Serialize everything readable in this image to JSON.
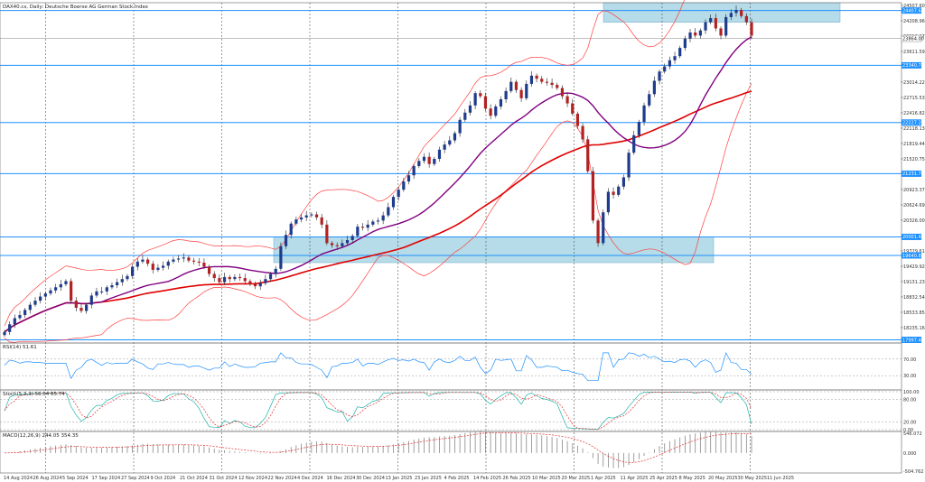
{
  "chart_data": {
    "type": "candlestick",
    "title": "DAX40.cs, Daily: Deutsche Boerse AG German Stock Index",
    "x_ticks": [
      "14 Aug 2024",
      "26 Aug 2024",
      "5 Sep 2024",
      "17 Sep 2024",
      "27 Sep 2024",
      "9 Oct 2024",
      "21 Oct 2024",
      "31 Oct 2024",
      "12 Nov 2024",
      "22 Nov 2024",
      "4 Dec 2024",
      "16 Dec 2024",
      "30 Dec 2024",
      "13 Jan 2025",
      "23 Jan 2025",
      "4 Feb 2025",
      "14 Feb 2025",
      "26 Feb 2025",
      "10 Mar 2025",
      "20 Mar 2025",
      "1 Apr 2025",
      "11 Apr 2025",
      "25 Apr 2025",
      "8 May 2025",
      "20 May 2025",
      "30 May 2025",
      "11 Jun 2025"
    ],
    "y_ticks": [
      "24507.60",
      "24208.96",
      "23910.27",
      "23611.59",
      "23014.22",
      "22715.53",
      "22416.82",
      "22118.13",
      "21819.44",
      "21520.75",
      "20923.37",
      "20624.69",
      "20326.00",
      "19729.61",
      "19429.92",
      "19131.23",
      "18832.54",
      "18533.85",
      "18235.16"
    ],
    "ylim": [
      17936,
      24560
    ],
    "price_tags": [
      {
        "label": "24407.63",
        "y": 24407.63
      },
      {
        "label": "23864.00",
        "y": 23864.0
      },
      {
        "label": "23340.70",
        "y": 23340.7
      },
      {
        "label": "22227.24",
        "y": 22227.24
      },
      {
        "label": "21231.71",
        "y": 21231.71
      },
      {
        "label": "20001.48",
        "y": 20001.48
      },
      {
        "label": "19640.87",
        "y": 19640.87
      },
      {
        "label": "17997.46",
        "y": 17997.46
      }
    ],
    "levels": [
      24407.63,
      23340.7,
      22227.24,
      21231.71,
      20001.48,
      19640.87,
      17997.46
    ],
    "current_price": 23864.0,
    "zones": [
      {
        "x_from": "1 Apr 2025",
        "x_to": "11 Jun 2025",
        "y_from": 24180,
        "y_to": 24560
      },
      {
        "x_from": "22 Nov 2024",
        "x_to": "30 May 2025",
        "y_from": 19500,
        "y_to": 20001.48
      }
    ],
    "series": [
      {
        "kind": "close",
        "values": [
          18150,
          18300,
          18420,
          18480,
          18580,
          18680,
          18760,
          18840,
          18900,
          18960,
          19020,
          19080,
          19140,
          18760,
          18620,
          18560,
          18680,
          18860,
          18940,
          18940,
          19020,
          19060,
          19120,
          19180,
          19240,
          19420,
          19520,
          19560,
          19480,
          19360,
          19400,
          19440,
          19520,
          19560,
          19580,
          19600,
          19540,
          19520,
          19500,
          19420,
          19280,
          19200,
          19120,
          19220,
          19180,
          19220,
          19200,
          19140,
          19080,
          19040,
          19100,
          19180,
          19280,
          19380,
          19820,
          20040,
          20260,
          20340,
          20380,
          20420,
          20440,
          20380,
          20240,
          19880,
          19840,
          19820,
          19880,
          19940,
          20020,
          20200,
          20180,
          20240,
          20300,
          20320,
          20420,
          20580,
          20780,
          20920,
          21080,
          21200,
          21380,
          21480,
          21560,
          21420,
          21520,
          21700,
          21800,
          21880,
          22020,
          22280,
          22420,
          22560,
          22800,
          22740,
          22500,
          22360,
          22540,
          22680,
          22840,
          23020,
          22860,
          22700,
          22980,
          23140,
          23080,
          23020,
          23000,
          22960,
          22900,
          22740,
          22600,
          22400,
          22160,
          21900,
          21280,
          20320,
          19880,
          20480,
          20880,
          20820,
          20980,
          21160,
          21640,
          21980,
          22240,
          22560,
          22780,
          23040,
          23220,
          23320,
          23440,
          23520,
          23680,
          23860,
          23980,
          23920,
          24020,
          24180,
          24260,
          24060,
          23920,
          24280,
          24360,
          24420,
          24300,
          24180,
          23920
        ]
      },
      {
        "kind": "sma_fast",
        "color": "#800080"
      },
      {
        "kind": "sma_slow",
        "color": "#e00000"
      },
      {
        "kind": "bollinger",
        "color": "#ff4040"
      }
    ],
    "indicators": [
      {
        "name": "RSI",
        "label": "RSI(14) 51.61",
        "levels": [
          "70.00",
          "30.00"
        ]
      },
      {
        "name": "Stoch",
        "label": "Stoch(5,3,3) 56.04 65.74",
        "levels": [
          "100.00",
          "80.00",
          "20.00",
          "0.00"
        ]
      },
      {
        "name": "MACD",
        "label": "MACD(12,26,9) 244.05 354.35",
        "levels": [
          "546.072",
          "0.000",
          "-504.762"
        ]
      }
    ],
    "colors": {
      "up": "#1f3b8c",
      "down": "#b22222",
      "level": "#1e90ff",
      "zone": "#add8e6"
    }
  }
}
